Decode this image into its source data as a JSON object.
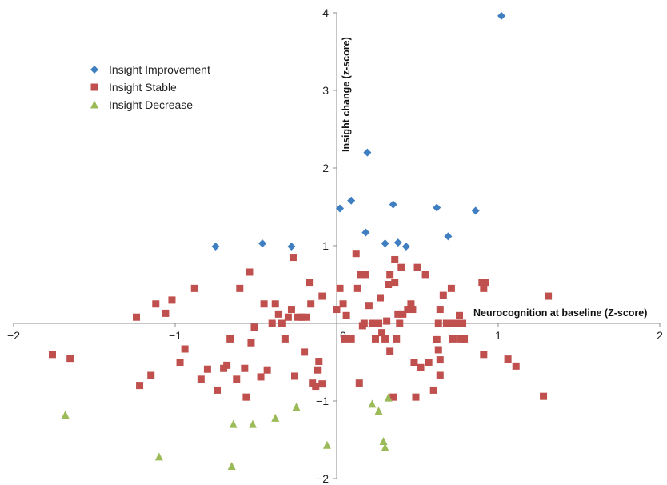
{
  "chart_data": {
    "type": "scatter",
    "title": "",
    "xlabel": "Neurocognition at baseline (Z-score)",
    "ylabel": "Insight change (z-score)",
    "xlim": [
      -2,
      2
    ],
    "ylim": [
      -2,
      4
    ],
    "xticks": [
      -2,
      -1,
      0,
      1,
      2
    ],
    "yticks": [
      -2,
      -1,
      0,
      1,
      2,
      3,
      4
    ],
    "xtick_labels": [
      "−2",
      "−1",
      "0",
      "1",
      "2"
    ],
    "ytick_labels": [
      "−2",
      "−1",
      "0",
      "1",
      "2",
      "3",
      "4"
    ],
    "grid": false,
    "legend_position": "top-left",
    "series": [
      {
        "name": "Insight Improvement",
        "marker": "diamond",
        "color": "#3f7fc1",
        "points": [
          [
            1.02,
            3.96
          ],
          [
            0.19,
            2.2
          ],
          [
            0.09,
            1.58
          ],
          [
            0.02,
            1.48
          ],
          [
            0.35,
            1.53
          ],
          [
            0.62,
            1.49
          ],
          [
            0.86,
            1.45
          ],
          [
            0.69,
            1.12
          ],
          [
            0.18,
            1.17
          ],
          [
            0.3,
            1.03
          ],
          [
            0.38,
            1.04
          ],
          [
            0.43,
            0.99
          ],
          [
            -0.75,
            0.99
          ],
          [
            -0.46,
            1.03
          ],
          [
            -0.28,
            0.99
          ]
        ]
      },
      {
        "name": "Insight Stable",
        "marker": "square",
        "color": "#c0504d",
        "points": [
          [
            -1.76,
            -0.4
          ],
          [
            -1.65,
            -0.45
          ],
          [
            -1.24,
            0.08
          ],
          [
            -1.22,
            -0.8
          ],
          [
            -1.15,
            -0.67
          ],
          [
            -1.12,
            0.25
          ],
          [
            -1.06,
            0.13
          ],
          [
            -1.02,
            0.3
          ],
          [
            -0.97,
            -0.5
          ],
          [
            -0.94,
            -0.33
          ],
          [
            -0.88,
            0.45
          ],
          [
            -0.84,
            -0.72
          ],
          [
            -0.8,
            -0.59
          ],
          [
            -0.74,
            -0.86
          ],
          [
            -0.7,
            -0.58
          ],
          [
            -0.68,
            -0.54
          ],
          [
            -0.66,
            -0.2
          ],
          [
            -0.62,
            -0.72
          ],
          [
            -0.6,
            0.45
          ],
          [
            -0.57,
            -0.58
          ],
          [
            -0.56,
            -0.95
          ],
          [
            -0.54,
            0.66
          ],
          [
            -0.53,
            -0.25
          ],
          [
            -0.51,
            -0.05
          ],
          [
            -0.47,
            -0.69
          ],
          [
            -0.45,
            0.25
          ],
          [
            -0.43,
            -0.6
          ],
          [
            -0.4,
            0.0
          ],
          [
            -0.38,
            0.25
          ],
          [
            -0.36,
            0.12
          ],
          [
            -0.34,
            0.0
          ],
          [
            -0.32,
            -0.2
          ],
          [
            -0.3,
            0.08
          ],
          [
            -0.28,
            0.18
          ],
          [
            -0.27,
            0.85
          ],
          [
            -0.26,
            -0.68
          ],
          [
            -0.24,
            0.08
          ],
          [
            -0.22,
            0.08
          ],
          [
            -0.2,
            -0.37
          ],
          [
            -0.19,
            0.08
          ],
          [
            -0.17,
            0.53
          ],
          [
            -0.16,
            0.25
          ],
          [
            -0.15,
            -0.77
          ],
          [
            -0.13,
            -0.81
          ],
          [
            -0.12,
            -0.6
          ],
          [
            -0.11,
            -0.49
          ],
          [
            -0.09,
            -0.78
          ],
          [
            -0.09,
            0.35
          ],
          [
            0.0,
            0.18
          ],
          [
            0.02,
            0.45
          ],
          [
            0.04,
            0.25
          ],
          [
            0.05,
            -0.2
          ],
          [
            0.06,
            0.1
          ],
          [
            0.09,
            -0.2
          ],
          [
            0.12,
            0.9
          ],
          [
            0.13,
            0.45
          ],
          [
            0.14,
            -0.77
          ],
          [
            0.15,
            0.63
          ],
          [
            0.16,
            -0.03
          ],
          [
            0.17,
            0.0
          ],
          [
            0.18,
            0.63
          ],
          [
            0.2,
            0.23
          ],
          [
            0.22,
            0.0
          ],
          [
            0.24,
            -0.2
          ],
          [
            0.26,
            0.0
          ],
          [
            0.27,
            0.33
          ],
          [
            0.28,
            -0.12
          ],
          [
            0.3,
            -0.2
          ],
          [
            0.31,
            0.03
          ],
          [
            0.32,
            0.5
          ],
          [
            0.33,
            0.63
          ],
          [
            0.33,
            -0.36
          ],
          [
            0.35,
            -0.95
          ],
          [
            0.36,
            0.82
          ],
          [
            0.36,
            0.53
          ],
          [
            0.37,
            -0.2
          ],
          [
            0.38,
            0.12
          ],
          [
            0.39,
            0.0
          ],
          [
            0.4,
            0.72
          ],
          [
            0.41,
            0.12
          ],
          [
            0.44,
            0.18
          ],
          [
            0.46,
            0.25
          ],
          [
            0.47,
            0.18
          ],
          [
            0.48,
            -0.5
          ],
          [
            0.49,
            -0.95
          ],
          [
            0.5,
            0.72
          ],
          [
            0.52,
            -0.57
          ],
          [
            0.55,
            0.63
          ],
          [
            0.57,
            -0.5
          ],
          [
            0.6,
            -0.86
          ],
          [
            0.62,
            -0.21
          ],
          [
            0.63,
            0.0
          ],
          [
            0.63,
            -0.34
          ],
          [
            0.64,
            -0.67
          ],
          [
            0.64,
            -0.47
          ],
          [
            0.64,
            0.18
          ],
          [
            0.66,
            0.36
          ],
          [
            0.68,
            0.0
          ],
          [
            0.7,
            0.0
          ],
          [
            0.71,
            0.45
          ],
          [
            0.72,
            -0.2
          ],
          [
            0.74,
            0.0
          ],
          [
            0.76,
            0.1
          ],
          [
            0.77,
            -0.2
          ],
          [
            0.78,
            0.0
          ],
          [
            0.79,
            -0.2
          ],
          [
            0.9,
            0.53
          ],
          [
            0.91,
            0.45
          ],
          [
            0.91,
            -0.4
          ],
          [
            0.92,
            0.53
          ],
          [
            1.06,
            -0.46
          ],
          [
            1.11,
            -0.55
          ],
          [
            1.28,
            -0.94
          ],
          [
            1.31,
            0.35
          ]
        ]
      },
      {
        "name": "Insight Decrease",
        "marker": "triangle",
        "color": "#9bbb59",
        "points": [
          [
            -1.68,
            -1.18
          ],
          [
            -1.1,
            -1.72
          ],
          [
            -0.64,
            -1.3
          ],
          [
            -0.52,
            -1.3
          ],
          [
            -0.38,
            -1.22
          ],
          [
            -0.25,
            -1.08
          ],
          [
            -0.65,
            -1.84
          ],
          [
            -0.06,
            -1.57
          ],
          [
            0.22,
            -1.04
          ],
          [
            0.26,
            -1.13
          ],
          [
            0.32,
            -0.96
          ],
          [
            0.29,
            -1.52
          ],
          [
            0.3,
            -1.6
          ]
        ]
      }
    ]
  }
}
